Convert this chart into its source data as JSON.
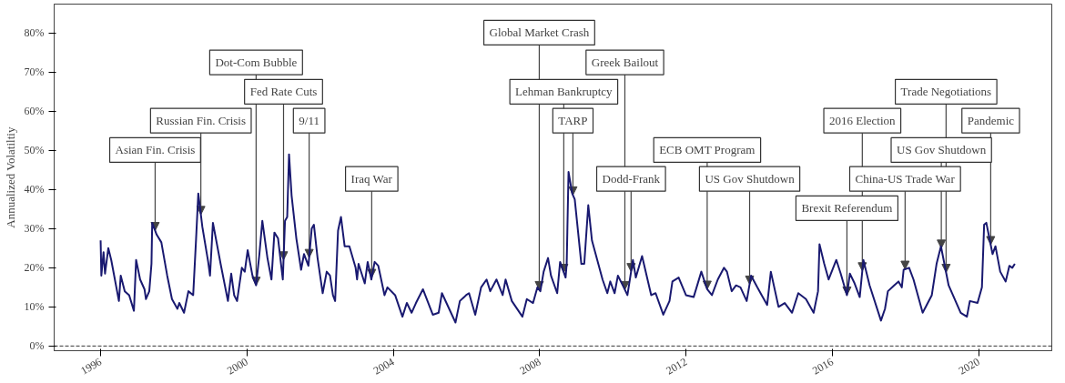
{
  "chart_data": {
    "type": "line",
    "ylabel": "Annualized Volatiltiy",
    "x": [
      1996.0,
      1996.02,
      1996.08,
      1996.12,
      1996.21,
      1996.29,
      1996.5,
      1996.55,
      1996.66,
      1996.78,
      1996.91,
      1996.97,
      1997.08,
      1997.2,
      1997.24,
      1997.33,
      1997.39,
      1997.41,
      1997.53,
      1997.66,
      1997.82,
      1997.95,
      1998.1,
      1998.15,
      1998.28,
      1998.4,
      1998.53,
      1998.61,
      1998.67,
      1998.78,
      1998.94,
      1998.99,
      1999.07,
      1999.28,
      1999.48,
      1999.57,
      1999.65,
      1999.73,
      1999.86,
      1999.94,
      2000.02,
      2000.15,
      2000.25,
      2000.34,
      2000.42,
      2000.56,
      2000.67,
      2000.75,
      2000.85,
      2000.98,
      2001.04,
      2001.1,
      2001.15,
      2001.22,
      2001.35,
      2001.48,
      2001.56,
      2001.68,
      2001.77,
      2001.83,
      2001.93,
      2002.07,
      2002.18,
      2002.27,
      2002.35,
      2002.41,
      2002.49,
      2002.57,
      2002.67,
      2002.8,
      2002.97,
      2003.01,
      2003.05,
      2003.22,
      2003.3,
      2003.4,
      2003.49,
      2003.59,
      2003.76,
      2003.84,
      2004.05,
      2004.25,
      2004.37,
      2004.5,
      2004.62,
      2004.81,
      2005.08,
      2005.24,
      2005.33,
      2005.7,
      2005.82,
      2005.99,
      2006.07,
      2006.24,
      2006.4,
      2006.55,
      2006.65,
      2006.82,
      2006.99,
      2007.07,
      2007.24,
      2007.53,
      2007.65,
      2007.82,
      2007.94,
      2008.02,
      2008.11,
      2008.23,
      2008.31,
      2008.48,
      2008.56,
      2008.71,
      2008.74,
      2008.79,
      2008.89,
      2008.96,
      2009.14,
      2009.22,
      2009.33,
      2009.43,
      2009.72,
      2009.85,
      2009.93,
      2010.05,
      2010.14,
      2010.3,
      2010.4,
      2010.55,
      2010.63,
      2010.8,
      2011.05,
      2011.17,
      2011.38,
      2011.55,
      2011.63,
      2011.8,
      2012.0,
      2012.21,
      2012.42,
      2012.58,
      2012.71,
      2012.87,
      2013.04,
      2013.12,
      2013.25,
      2013.37,
      2013.49,
      2013.66,
      2013.78,
      2013.95,
      2014.07,
      2014.22,
      2014.32,
      2014.53,
      2014.7,
      2014.9,
      2015.07,
      2015.28,
      2015.49,
      2015.61,
      2015.65,
      2015.78,
      2015.9,
      2016.11,
      2016.23,
      2016.4,
      2016.48,
      2016.61,
      2016.75,
      2016.85,
      2017.02,
      2017.33,
      2017.44,
      2017.52,
      2017.69,
      2017.81,
      2017.9,
      2017.95,
      2018.1,
      2018.22,
      2018.47,
      2018.72,
      2018.85,
      2018.97,
      2019.18,
      2019.51,
      2019.68,
      2019.76,
      2019.97,
      2020.09,
      2020.15,
      2020.21,
      2020.38,
      2020.46,
      2020.59,
      2020.74,
      2020.84,
      2020.92,
      2020.99
    ],
    "series": [
      {
        "color": "#191970",
        "values": [
          27,
          18,
          24,
          18.5,
          25,
          22,
          11.5,
          18,
          14,
          13,
          9,
          22,
          17,
          14.5,
          12,
          14,
          21,
          31.5,
          28.5,
          26.5,
          18,
          12,
          9.5,
          11,
          8.5,
          14,
          13,
          27.5,
          39,
          30.5,
          21.5,
          18,
          31.5,
          21,
          11.5,
          18.5,
          13,
          11.5,
          20,
          19,
          24.5,
          18,
          15.5,
          23.5,
          32,
          22.5,
          17,
          29,
          27.5,
          17,
          32,
          33,
          49,
          38.5,
          27.5,
          19.5,
          23.5,
          20.5,
          30,
          31,
          22.5,
          13.5,
          19,
          18,
          13,
          11.5,
          29.5,
          33,
          25.5,
          25.5,
          20,
          17,
          21,
          16,
          21.5,
          17,
          21.5,
          20.5,
          13,
          15,
          13,
          7.5,
          11,
          8.5,
          11,
          14.5,
          8,
          8.5,
          13.5,
          6,
          11.5,
          13,
          13.5,
          8,
          15,
          17,
          14,
          17,
          13,
          17,
          11.5,
          7.5,
          12,
          11,
          15,
          14,
          19,
          22.5,
          18,
          13.5,
          21.5,
          17.5,
          21,
          44.5,
          39,
          37.5,
          21,
          21,
          36,
          27,
          17,
          13.5,
          16.5,
          13.5,
          18,
          15,
          13,
          22,
          17.5,
          23,
          13,
          13.5,
          8,
          11.5,
          16.5,
          17.5,
          13,
          12.5,
          19,
          14.5,
          13,
          17,
          20,
          19,
          14,
          15.5,
          15,
          11.5,
          18,
          15,
          13,
          10.5,
          19,
          10,
          11,
          8.5,
          13.5,
          12,
          8.5,
          14,
          26,
          21,
          17,
          22,
          18.5,
          13,
          18.5,
          16,
          12.5,
          22,
          15.5,
          6.5,
          9.5,
          14,
          15.5,
          16.5,
          15,
          19.5,
          20,
          17,
          8.5,
          13,
          21,
          25.5,
          15.5,
          8.5,
          7.5,
          11.5,
          11,
          15,
          31,
          31.5,
          23.5,
          25.5,
          19,
          16.5,
          20.5,
          20,
          21
        ]
      }
    ],
    "xlim": [
      1994.73,
      2022.0
    ],
    "xticks": [
      1996,
      2000,
      2004,
      2008,
      2012,
      2016,
      2020
    ],
    "ylim": [
      -1.2,
      87.4
    ],
    "yticks": [
      {
        "value": 0,
        "label": "0%"
      },
      {
        "value": 10,
        "label": "10%"
      },
      {
        "value": 20,
        "label": "20%"
      },
      {
        "value": 30,
        "label": "30%"
      },
      {
        "value": 40,
        "label": "40%"
      },
      {
        "value": 50,
        "label": "50%"
      },
      {
        "value": 60,
        "label": "60%"
      },
      {
        "value": 70,
        "label": "70%"
      },
      {
        "value": 80,
        "label": "80%"
      }
    ],
    "grid": false,
    "line_style": "solid",
    "ref_lines": [
      {
        "axis": "y",
        "value": 0,
        "color": "#000000",
        "line_style": "dashed"
      }
    ],
    "annotations": [
      {
        "text": "Asian Fin. Crisis",
        "x": 1997.49,
        "y": 29.5
      },
      {
        "text": "Russian Fin. Crisis",
        "x": 1998.74,
        "y": 33.6
      },
      {
        "text": "Dot-Com Bubble",
        "x": 2000.25,
        "y": 15.5
      },
      {
        "text": "Fed Rate Cuts",
        "x": 2001.0,
        "y": 22
      },
      {
        "text": "9/11",
        "x": 2001.7,
        "y": 22.6
      },
      {
        "text": "Iraq War",
        "x": 2003.41,
        "y": 17.5
      },
      {
        "text": "Global Market Crash",
        "x": 2007.99,
        "y": 14.4
      },
      {
        "text": "Lehman Bankruptcy",
        "x": 2008.66,
        "y": 18.8
      },
      {
        "text": "TARP",
        "x": 2008.91,
        "y": 38.6
      },
      {
        "text": "Greek Bailout",
        "x": 2010.33,
        "y": 14.4
      },
      {
        "text": "Dodd-Frank",
        "x": 2010.5,
        "y": 19
      },
      {
        "text": "ECB OMT Program",
        "x": 2012.58,
        "y": 14.5
      },
      {
        "text": "US Gov Shutdown",
        "x": 2013.74,
        "y": 15.8
      },
      {
        "text": "Brexit Referendum",
        "x": 2016.4,
        "y": 13
      },
      {
        "text": "2016 Election",
        "x": 2016.82,
        "y": 19.2
      },
      {
        "text": "China-US Trade War",
        "x": 2017.99,
        "y": 19.6
      },
      {
        "text": "US Gov Shutdown",
        "x": 2018.98,
        "y": 25
      },
      {
        "text": "Trade Negotiations",
        "x": 2019.11,
        "y": 18.8
      },
      {
        "text": "Pandemic",
        "x": 2020.33,
        "y": 25.9
      }
    ]
  }
}
